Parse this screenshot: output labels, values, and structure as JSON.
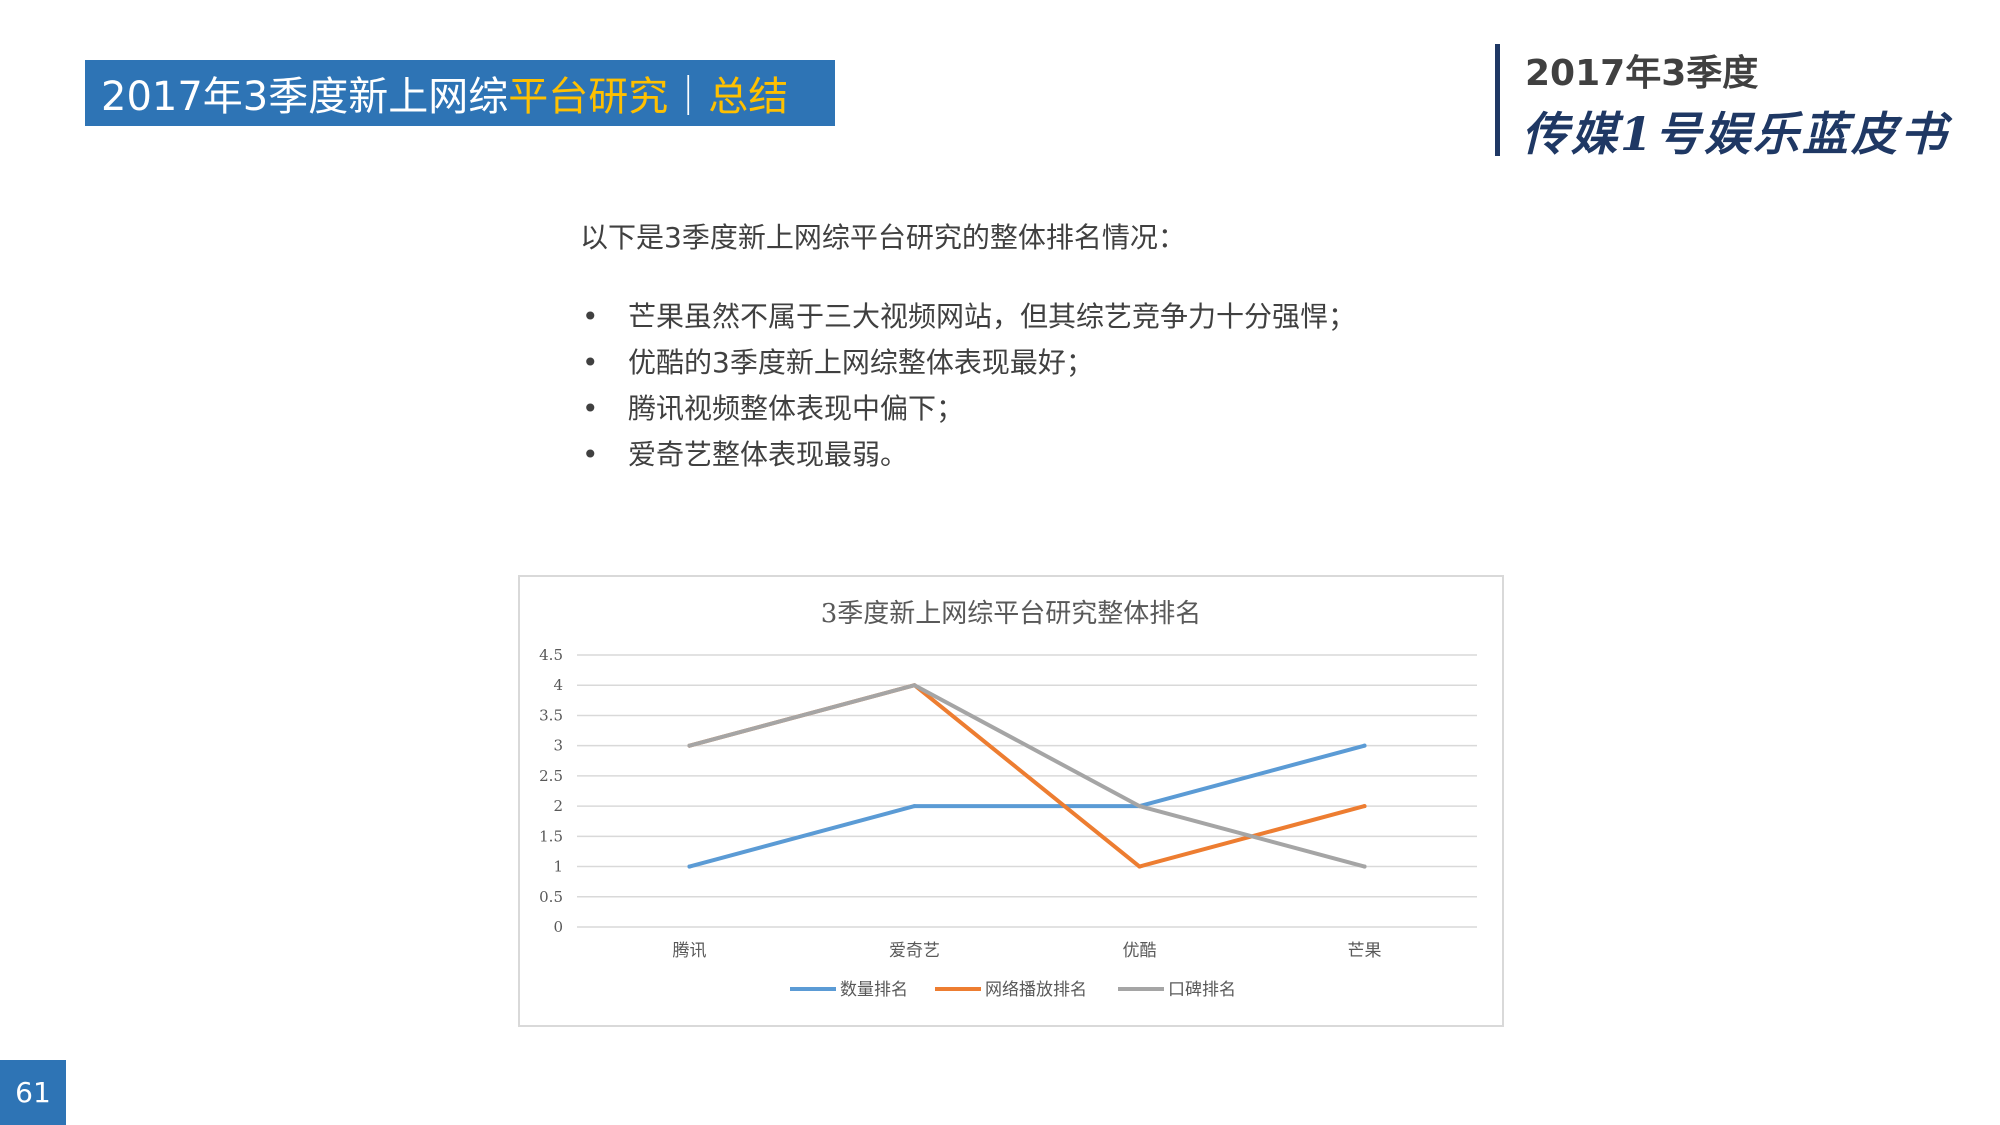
{
  "header": {
    "title_main": "2017年3季度新上网综",
    "title_highlight": "平台研究",
    "title_sep": "｜",
    "title_tail": "总结",
    "brand_year": "2017年3季度",
    "brand_name": "传媒1号娱乐蓝皮书"
  },
  "summary": {
    "intro": "以下是3季度新上网综平台研究的整体排名情况：",
    "bullet_char": "•",
    "bullets": [
      "芒果虽然不属于三大视频网站，但其综艺竞争力十分强悍；",
      "优酷的3季度新上网综整体表现最好；",
      "腾讯视频整体表现中偏下；",
      "爱奇艺整体表现最弱。"
    ]
  },
  "chart_data": {
    "type": "line",
    "title": "3季度新上网综平台研究整体排名",
    "categories": [
      "腾讯",
      "爱奇艺",
      "优酷",
      "芒果"
    ],
    "ylim": [
      0,
      4.5
    ],
    "yticks": [
      "0",
      "0.5",
      "1",
      "1.5",
      "2",
      "2.5",
      "3",
      "3.5",
      "4",
      "4.5"
    ],
    "grid": true,
    "legend_position": "bottom",
    "series": [
      {
        "name": "数量排名",
        "values": [
          1,
          2,
          2,
          3
        ],
        "color": "#5b9bd5"
      },
      {
        "name": "网络播放排名",
        "values": [
          3,
          4,
          1,
          2
        ],
        "color": "#ed7d31"
      },
      {
        "name": "口碑排名",
        "values": [
          3,
          4,
          2,
          1
        ],
        "color": "#a5a5a5"
      }
    ]
  },
  "footer": {
    "page_number": "61"
  }
}
